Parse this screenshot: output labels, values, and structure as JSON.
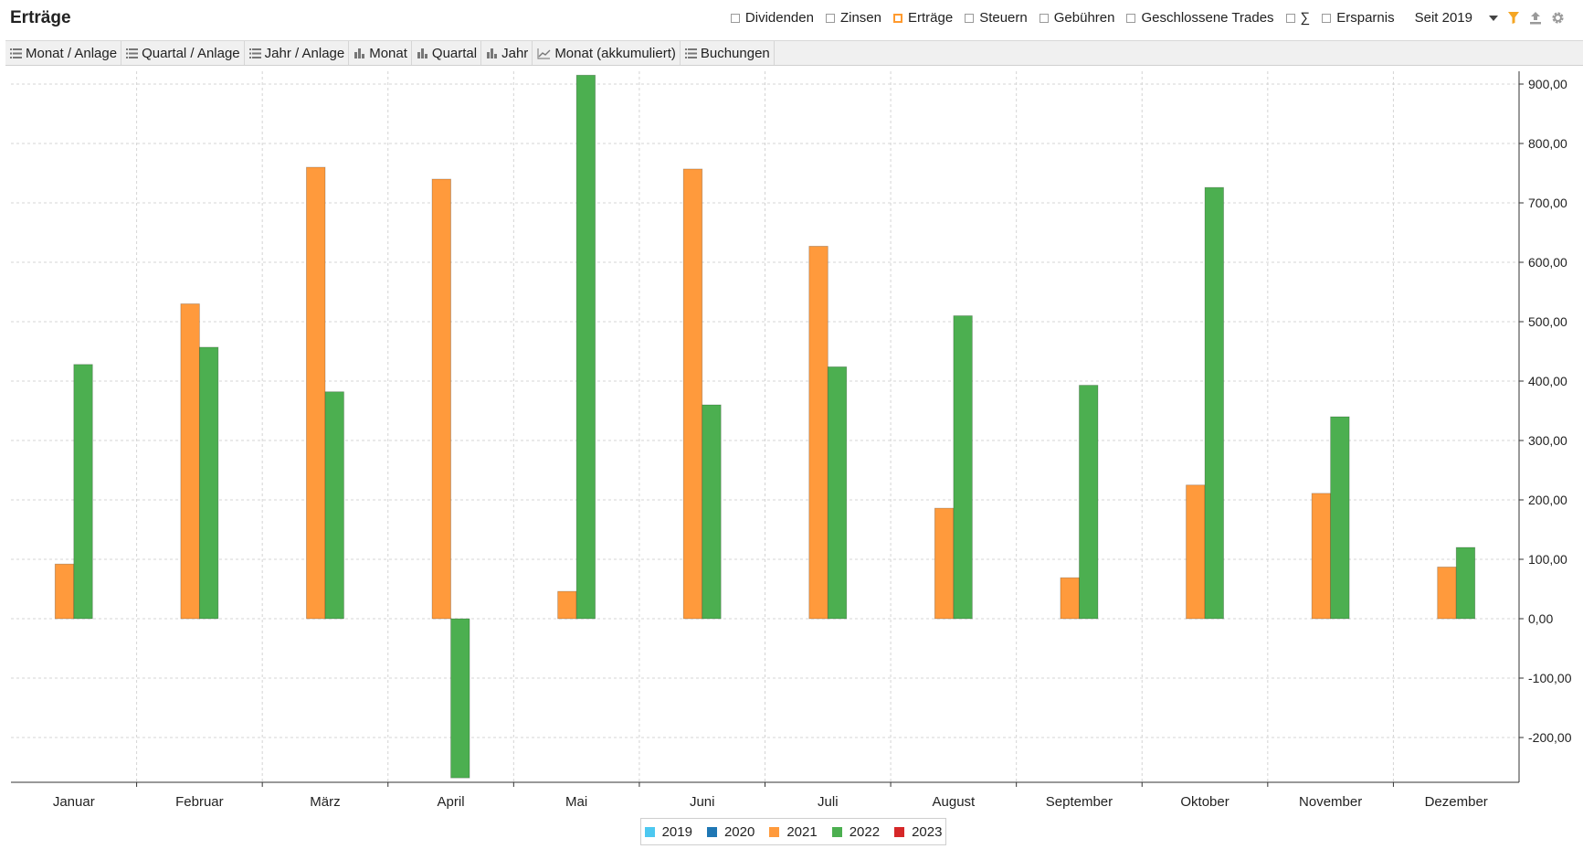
{
  "header": {
    "title": "Erträge",
    "filters": [
      {
        "label": "Dividenden",
        "checked": false
      },
      {
        "label": "Zinsen",
        "checked": false
      },
      {
        "label": "Erträge",
        "checked": true
      },
      {
        "label": "Steuern",
        "checked": false
      },
      {
        "label": "Gebühren",
        "checked": false
      },
      {
        "label": "Geschlossene Trades",
        "checked": false
      },
      {
        "label": "∑",
        "checked": false
      },
      {
        "label": "Ersparnis",
        "checked": false
      }
    ],
    "period": "Seit 2019",
    "icons": [
      "filter-icon",
      "export-icon",
      "gear-icon"
    ],
    "accent_color": "#ff9a2e"
  },
  "tabs": [
    {
      "label": "Monat / Anlage",
      "icon": "table-icon"
    },
    {
      "label": "Quartal / Anlage",
      "icon": "table-icon"
    },
    {
      "label": "Jahr / Anlage",
      "icon": "table-icon"
    },
    {
      "label": "Monat",
      "icon": "bar-chart-icon"
    },
    {
      "label": "Quartal",
      "icon": "bar-chart-icon"
    },
    {
      "label": "Jahr",
      "icon": "bar-chart-icon"
    },
    {
      "label": "Monat (akkumuliert)",
      "icon": "line-chart-icon"
    },
    {
      "label": "Buchungen",
      "icon": "table-icon"
    }
  ],
  "chart_data": {
    "type": "bar",
    "categories": [
      "Januar",
      "Februar",
      "März",
      "April",
      "Mai",
      "Juni",
      "Juli",
      "August",
      "September",
      "Oktober",
      "November",
      "Dezember"
    ],
    "series": [
      {
        "name": "2019",
        "color": "#4dc8f0",
        "values": [
          0,
          0,
          0,
          0,
          0,
          0,
          0,
          0,
          0,
          0,
          0,
          0
        ]
      },
      {
        "name": "2020",
        "color": "#1f77b4",
        "values": [
          0,
          0,
          0,
          0,
          0,
          0,
          0,
          0,
          0,
          0,
          0,
          0
        ]
      },
      {
        "name": "2021",
        "color": "#ff9a3c",
        "values": [
          92,
          530,
          760,
          740,
          46,
          757,
          627,
          186,
          69,
          225,
          211,
          87
        ]
      },
      {
        "name": "2022",
        "color": "#4caf50",
        "values": [
          428,
          457,
          382,
          -268,
          915,
          360,
          424,
          510,
          393,
          726,
          340,
          120
        ]
      },
      {
        "name": "2023",
        "color": "#d62728",
        "values": [
          0,
          0,
          0,
          0,
          0,
          0,
          0,
          0,
          0,
          0,
          0,
          0
        ]
      }
    ],
    "y_ticks": [
      "900,00",
      "800,00",
      "700,00",
      "600,00",
      "500,00",
      "400,00",
      "300,00",
      "200,00",
      "100,00",
      "0,00",
      "-100,00",
      "-200,00"
    ],
    "ylim": [
      -275,
      940
    ],
    "grid": true,
    "y_axis_side": "right",
    "legend_position": "bottom-center"
  }
}
